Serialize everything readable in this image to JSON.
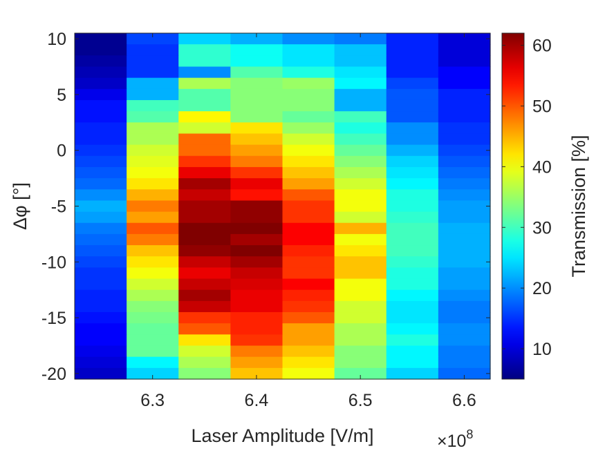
{
  "chart_data": {
    "type": "heatmap",
    "title": "",
    "xlabel": "Laser Amplitude [V/m]",
    "ylabel": "Δφ [°]",
    "x_multiplier": "×10",
    "x_multiplier_exponent": "8",
    "colorbar_label": "Transmission [%]",
    "colormap": "jet",
    "clim": [
      5,
      62
    ],
    "xlim": [
      6.225,
      6.625
    ],
    "ylim": [
      -20.5,
      10.5
    ],
    "x_ticks": [
      "6.3",
      "6.4",
      "6.5",
      "6.6"
    ],
    "y_ticks": [
      "10",
      "5",
      "0",
      "-5",
      "-10",
      "-15",
      "-20"
    ],
    "colorbar_ticks": [
      "10",
      "20",
      "30",
      "40",
      "50",
      "60"
    ],
    "x_centers": [
      6.25,
      6.3,
      6.35,
      6.4,
      6.45,
      6.5,
      6.55,
      6.6
    ],
    "y_centers": [
      10,
      9,
      8,
      7,
      6,
      5,
      4,
      3,
      2,
      1,
      0,
      -1,
      -2,
      -3,
      -4,
      -5,
      -6,
      -7,
      -8,
      -9,
      -10,
      -11,
      -12,
      -13,
      -14,
      -15,
      -16,
      -17,
      -18,
      -19,
      -20
    ],
    "values": [
      [
        6,
        16,
        24,
        22,
        20,
        19,
        14,
        10
      ],
      [
        6,
        15,
        29,
        27,
        25,
        23,
        14,
        10
      ],
      [
        7,
        15,
        29,
        27,
        25,
        23,
        14,
        10
      ],
      [
        8,
        15,
        20,
        31,
        28,
        25,
        14,
        12
      ],
      [
        9,
        22,
        36,
        34,
        35,
        26,
        16,
        12
      ],
      [
        11,
        22,
        31,
        34,
        34,
        22,
        17,
        14
      ],
      [
        13,
        30,
        31,
        34,
        34,
        22,
        17,
        14
      ],
      [
        13,
        31,
        41,
        34,
        32,
        30,
        17,
        14
      ],
      [
        14,
        36,
        38,
        42,
        35,
        28,
        20,
        15
      ],
      [
        14,
        36,
        49,
        44,
        38,
        30,
        20,
        15
      ],
      [
        15,
        38,
        49,
        46,
        40,
        32,
        22,
        16
      ],
      [
        16,
        39,
        52,
        48,
        42,
        34,
        24,
        17
      ],
      [
        17,
        40,
        56,
        52,
        44,
        36,
        25,
        18
      ],
      [
        18,
        42,
        60,
        56,
        46,
        38,
        26,
        19
      ],
      [
        20,
        45,
        58,
        54,
        50,
        40,
        28,
        20
      ],
      [
        22,
        48,
        60,
        61,
        52,
        40,
        28,
        21
      ],
      [
        21,
        46,
        60,
        61,
        52,
        38,
        29,
        21
      ],
      [
        19,
        50,
        62,
        62,
        55,
        45,
        30,
        22
      ],
      [
        18,
        48,
        62,
        60,
        55,
        40,
        30,
        22
      ],
      [
        17,
        44,
        61,
        62,
        53,
        42,
        30,
        22
      ],
      [
        16,
        42,
        58,
        60,
        52,
        44,
        29,
        22
      ],
      [
        15,
        40,
        56,
        58,
        52,
        44,
        28,
        21
      ],
      [
        15,
        38,
        58,
        57,
        55,
        40,
        28,
        21
      ],
      [
        14,
        36,
        60,
        56,
        53,
        40,
        26,
        20
      ],
      [
        14,
        34,
        58,
        56,
        52,
        38,
        25,
        19
      ],
      [
        13,
        33,
        52,
        53,
        50,
        38,
        25,
        19
      ],
      [
        12,
        32,
        50,
        53,
        46,
        36,
        26,
        20
      ],
      [
        12,
        32,
        42,
        52,
        46,
        36,
        28,
        20
      ],
      [
        11,
        32,
        38,
        48,
        44,
        34,
        26,
        19
      ],
      [
        10,
        26,
        36,
        46,
        42,
        34,
        26,
        19
      ],
      [
        9,
        24,
        34,
        44,
        40,
        32,
        24,
        18
      ]
    ]
  }
}
